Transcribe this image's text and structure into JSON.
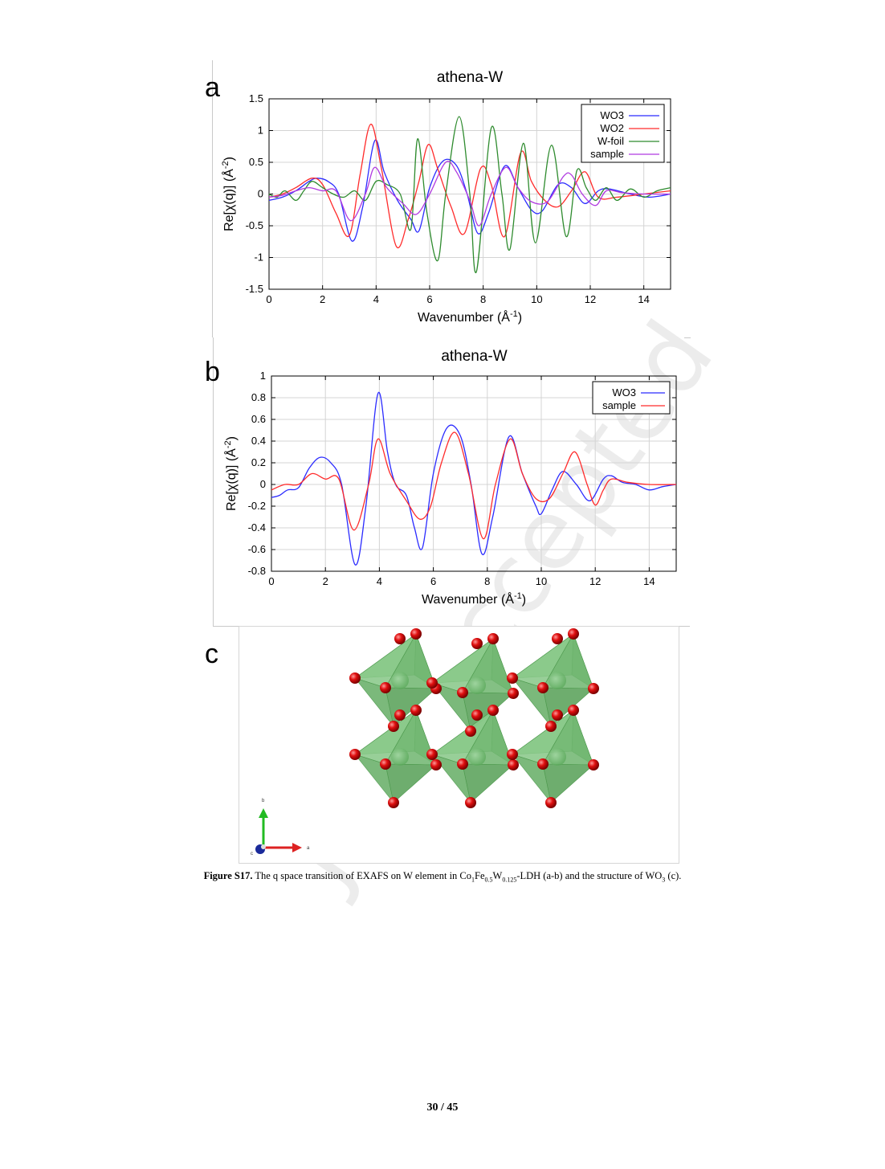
{
  "panels": {
    "a": {
      "letter": "a"
    },
    "b": {
      "letter": "b"
    },
    "c": {
      "letter": "c"
    }
  },
  "chart_data": [
    {
      "type": "line",
      "panel": "a",
      "title": "athena-W",
      "xlabel": "Wavenumber",
      "xlabel_unit": "(Å",
      "xlabel_unit_exp": "-1",
      "xlabel_unit_close": ")",
      "ylabel": "Re[χ(q)]",
      "ylabel_unit": "(Å",
      "ylabel_unit_exp": "-2",
      "ylabel_unit_close": ")",
      "xlim": [
        0,
        15
      ],
      "ylim": [
        -1.5,
        1.5
      ],
      "xticks": [
        0,
        2,
        4,
        6,
        8,
        10,
        12,
        14
      ],
      "yticks": [
        -1.5,
        -1,
        -0.5,
        0,
        0.5,
        1,
        1.5
      ],
      "ytick_labels": [
        "-1.5",
        "-1",
        "-0.5",
        "0",
        "0.5",
        "1",
        "1.5"
      ],
      "grid": true,
      "legend_position": "top-right",
      "series": [
        {
          "name": "WO3",
          "color": "#2b2bff",
          "x": [
            0,
            0.5,
            1,
            1.5,
            1.8,
            2.2,
            2.6,
            3.1,
            3.5,
            3.95,
            4.3,
            4.8,
            5.3,
            5.6,
            6.0,
            6.5,
            7.0,
            7.4,
            7.8,
            8.2,
            8.8,
            9.3,
            9.8,
            10.2,
            10.8,
            11.3,
            11.8,
            12.3,
            12.7,
            13.5,
            14.2,
            15
          ],
          "y": [
            -0.1,
            -0.05,
            0.05,
            0.2,
            0.25,
            0.2,
            0.0,
            -0.74,
            -0.2,
            0.84,
            0.35,
            -0.1,
            -0.4,
            -0.58,
            0.1,
            0.52,
            0.45,
            0.0,
            -0.62,
            -0.3,
            0.44,
            0.1,
            -0.25,
            -0.27,
            0.15,
            0.1,
            -0.15,
            0.05,
            0.08,
            0.0,
            -0.05,
            0.0
          ]
        },
        {
          "name": "WO2",
          "color": "#ff2b2b",
          "x": [
            0,
            0.5,
            1,
            1.6,
            2.0,
            2.5,
            3.0,
            3.4,
            3.8,
            4.2,
            4.75,
            5.2,
            5.6,
            5.95,
            6.3,
            6.8,
            7.3,
            7.9,
            8.3,
            8.8,
            9.4,
            9.8,
            10.3,
            10.8,
            11.3,
            11.8,
            12.3,
            13,
            14,
            15
          ],
          "y": [
            -0.05,
            0.0,
            0.1,
            0.25,
            0.15,
            -0.3,
            -0.65,
            0.3,
            1.1,
            0.4,
            -0.82,
            -0.4,
            0.2,
            0.78,
            0.4,
            -0.2,
            -0.62,
            0.4,
            0.15,
            -0.67,
            0.65,
            0.2,
            -0.1,
            -0.2,
            0.05,
            0.35,
            -0.05,
            -0.05,
            0.0,
            0.05
          ]
        },
        {
          "name": "W-foil",
          "color": "#2e8b2e",
          "x": [
            0,
            0.3,
            0.6,
            1.0,
            1.3,
            1.6,
            2.0,
            2.4,
            2.8,
            3.2,
            3.6,
            4.0,
            4.4,
            4.9,
            5.3,
            5.55,
            5.9,
            6.3,
            6.6,
            7.1,
            7.5,
            7.75,
            8.3,
            8.7,
            9.0,
            9.5,
            9.95,
            10.55,
            11.1,
            11.5,
            11.85,
            12.2,
            12.6,
            13.0,
            13.5,
            14,
            14.5,
            15
          ],
          "y": [
            0.0,
            -0.05,
            0.05,
            -0.1,
            0.05,
            0.2,
            0.1,
            0.0,
            -0.05,
            0.05,
            -0.1,
            0.2,
            0.15,
            0.0,
            -0.55,
            0.87,
            -0.3,
            -1.05,
            0.0,
            1.22,
            0.0,
            -1.22,
            1.04,
            0.0,
            -0.87,
            0.8,
            -0.77,
            0.77,
            -0.67,
            0.37,
            0.1,
            -0.1,
            0.1,
            -0.1,
            0.08,
            -0.05,
            0.05,
            0.1
          ]
        },
        {
          "name": "sample",
          "color": "#b03ae0",
          "x": [
            0,
            0.5,
            1,
            1.5,
            2.0,
            2.5,
            3.05,
            3.6,
            3.95,
            4.4,
            5.0,
            5.5,
            6.0,
            6.6,
            7.0,
            7.5,
            7.85,
            8.3,
            8.85,
            9.3,
            9.8,
            10.4,
            11.0,
            11.3,
            11.7,
            12.2,
            12.6,
            13.2,
            14,
            15
          ],
          "y": [
            -0.05,
            -0.02,
            0.05,
            0.1,
            0.05,
            0.05,
            -0.42,
            0.0,
            0.42,
            0.1,
            -0.15,
            -0.32,
            0.0,
            0.5,
            0.35,
            -0.1,
            -0.5,
            0.0,
            0.42,
            0.1,
            -0.12,
            -0.12,
            0.28,
            0.3,
            0.0,
            -0.18,
            0.05,
            0.02,
            0.0,
            0.0
          ]
        }
      ]
    },
    {
      "type": "line",
      "panel": "b",
      "title": "athena-W",
      "xlabel": "Wavenumber",
      "xlabel_unit": "(Å",
      "xlabel_unit_exp": "-1",
      "xlabel_unit_close": ")",
      "ylabel": "Re[χ(q)]",
      "ylabel_unit": "(Å",
      "ylabel_unit_exp": "-2",
      "ylabel_unit_close": ")",
      "xlim": [
        0,
        15
      ],
      "ylim": [
        -0.8,
        1
      ],
      "xticks": [
        0,
        2,
        4,
        6,
        8,
        10,
        12,
        14
      ],
      "yticks": [
        -0.8,
        -0.6,
        -0.4,
        -0.2,
        0,
        0.2,
        0.4,
        0.6,
        0.8,
        1
      ],
      "ytick_labels": [
        "-0.8",
        "-0.6",
        "-0.4",
        "-0.2",
        "0",
        "0.2",
        "0.4",
        "0.6",
        "0.8",
        "1"
      ],
      "grid": true,
      "legend_position": "top-right",
      "series": [
        {
          "name": "WO3",
          "color": "#2b2bff",
          "x": [
            0,
            0.3,
            0.6,
            1.0,
            1.4,
            1.8,
            2.2,
            2.6,
            3.1,
            3.5,
            3.95,
            4.3,
            4.6,
            5.0,
            5.3,
            5.6,
            6.0,
            6.5,
            7.0,
            7.4,
            7.8,
            8.2,
            8.8,
            9.3,
            9.8,
            10.0,
            10.4,
            10.8,
            11.3,
            11.8,
            12.3,
            12.6,
            13.0,
            13.5,
            14.0,
            14.5,
            15
          ],
          "y": [
            -0.12,
            -0.1,
            -0.05,
            -0.03,
            0.15,
            0.25,
            0.2,
            0.0,
            -0.74,
            -0.2,
            0.84,
            0.3,
            0.0,
            -0.1,
            -0.4,
            -0.58,
            0.1,
            0.52,
            0.45,
            0.0,
            -0.64,
            -0.3,
            0.44,
            0.1,
            -0.2,
            -0.27,
            -0.05,
            0.12,
            0.0,
            -0.15,
            0.05,
            0.08,
            0.02,
            0.0,
            -0.05,
            -0.02,
            0.0
          ]
        },
        {
          "name": "sample",
          "color": "#ff2b2b",
          "x": [
            0,
            0.5,
            1,
            1.5,
            2.0,
            2.5,
            3.05,
            3.6,
            3.95,
            4.4,
            5.0,
            5.5,
            5.9,
            6.3,
            6.8,
            7.3,
            7.85,
            8.3,
            8.85,
            9.3,
            9.8,
            10.3,
            10.8,
            11.25,
            11.7,
            12.0,
            12.3,
            12.6,
            13.2,
            14,
            15
          ],
          "y": [
            -0.05,
            0.0,
            0.0,
            0.1,
            0.05,
            0.05,
            -0.42,
            0.0,
            0.42,
            0.1,
            -0.15,
            -0.32,
            -0.2,
            0.2,
            0.48,
            0.1,
            -0.5,
            0.0,
            0.42,
            0.1,
            -0.13,
            -0.13,
            0.1,
            0.3,
            0.0,
            -0.19,
            -0.05,
            0.05,
            0.02,
            0.0,
            0.0
          ]
        }
      ]
    }
  ],
  "structure": {
    "axis_labels": {
      "b": "b",
      "a": "a",
      "c": "c"
    }
  },
  "watermark": "Just Accepted",
  "caption": {
    "bold": "Figure S17.",
    "text_1": " The q space transition of EXAFS on W element in Co",
    "sub_1": "1",
    "text_2": "Fe",
    "sub_2": "0.5",
    "text_3": "W",
    "sub_3": "0.125",
    "text_4": "-LDH (a-b) and the structure of WO",
    "sub_4": "3",
    "text_5": " (c)."
  },
  "page_number": "30 / 45"
}
